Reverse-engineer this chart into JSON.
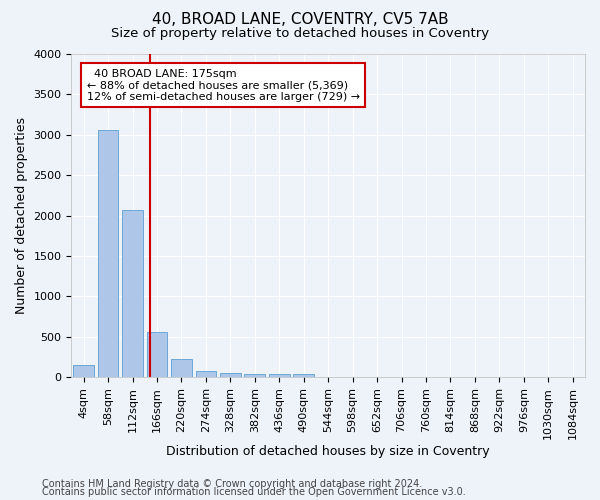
{
  "title": "40, BROAD LANE, COVENTRY, CV5 7AB",
  "subtitle": "Size of property relative to detached houses in Coventry",
  "xlabel": "Distribution of detached houses by size in Coventry",
  "ylabel": "Number of detached properties",
  "bin_labels": [
    "4sqm",
    "58sqm",
    "112sqm",
    "166sqm",
    "220sqm",
    "274sqm",
    "328sqm",
    "382sqm",
    "436sqm",
    "490sqm",
    "544sqm",
    "598sqm",
    "652sqm",
    "706sqm",
    "760sqm",
    "814sqm",
    "868sqm",
    "922sqm",
    "976sqm",
    "1030sqm",
    "1084sqm"
  ],
  "bar_values": [
    150,
    3060,
    2070,
    560,
    220,
    80,
    55,
    45,
    45,
    45,
    0,
    0,
    0,
    0,
    0,
    0,
    0,
    0,
    0,
    0,
    0
  ],
  "bar_color": "#aec6e8",
  "bar_edge_color": "#5a9fd4",
  "vline_color": "#cc0000",
  "ylim": [
    0,
    4000
  ],
  "yticks": [
    0,
    500,
    1000,
    1500,
    2000,
    2500,
    3000,
    3500,
    4000
  ],
  "annotation_text": "  40 BROAD LANE: 175sqm\n← 88% of detached houses are smaller (5,369)\n12% of semi-detached houses are larger (729) →",
  "annotation_box_color": "#ffffff",
  "annotation_box_edge": "#cc0000",
  "footer_line1": "Contains HM Land Registry data © Crown copyright and database right 2024.",
  "footer_line2": "Contains public sector information licensed under the Open Government Licence v3.0.",
  "bg_color": "#eef2f9",
  "grid_color": "#ffffff",
  "title_fontsize": 11,
  "subtitle_fontsize": 9.5,
  "axis_label_fontsize": 9,
  "tick_fontsize": 8,
  "footer_fontsize": 7,
  "annotation_fontsize": 8
}
